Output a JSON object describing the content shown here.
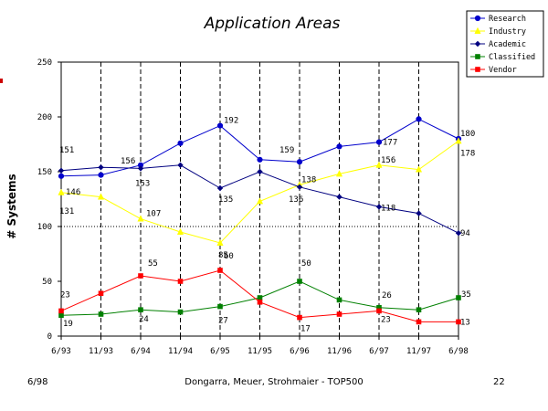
{
  "chart_data": {
    "type": "line",
    "title": "Application Areas",
    "ylabel": "# Systems",
    "xlabel": "",
    "categories": [
      "6/93",
      "11/93",
      "6/94",
      "11/94",
      "6/95",
      "11/95",
      "6/96",
      "11/96",
      "6/97",
      "11/97",
      "6/98"
    ],
    "ylim": [
      0,
      250
    ],
    "yticks": [
      0,
      50,
      100,
      150,
      200,
      250
    ],
    "grid": "vertical dashed lines at each category; dotted horizontal line at 100",
    "legend_position": "top-right",
    "series": [
      {
        "name": "Research",
        "color": "#0000cc",
        "marker": "circle",
        "values": [
          146,
          147,
          156,
          176,
          192,
          161,
          159,
          173,
          177,
          198,
          180
        ]
      },
      {
        "name": "Industry",
        "color": "#ffff00",
        "marker": "triangle",
        "values": [
          131,
          127,
          107,
          95,
          85,
          123,
          138,
          148,
          156,
          152,
          178
        ]
      },
      {
        "name": "Academic",
        "color": "#000080",
        "marker": "diamond",
        "values": [
          151,
          154,
          153,
          156,
          135,
          150,
          136,
          127,
          118,
          112,
          94
        ]
      },
      {
        "name": "Classified",
        "color": "#008000",
        "marker": "square",
        "values": [
          19,
          20,
          24,
          22,
          27,
          35,
          50,
          33,
          26,
          24,
          35
        ]
      },
      {
        "name": "Vendor",
        "color": "#ff0000",
        "marker": "square",
        "values": [
          23,
          39,
          55,
          50,
          60,
          31,
          17,
          20,
          23,
          13,
          13
        ]
      }
    ],
    "annotations": [
      {
        "series": 0,
        "index": 0,
        "text": "146"
      },
      {
        "series": 0,
        "index": 2,
        "text": "156"
      },
      {
        "series": 0,
        "index": 4,
        "text": "192"
      },
      {
        "series": 0,
        "index": 6,
        "text": "159"
      },
      {
        "series": 0,
        "index": 8,
        "text": "177"
      },
      {
        "series": 0,
        "index": 10,
        "text": "180"
      },
      {
        "series": 1,
        "index": 0,
        "text": "131"
      },
      {
        "series": 1,
        "index": 2,
        "text": "107"
      },
      {
        "series": 1,
        "index": 4,
        "text": "85"
      },
      {
        "series": 1,
        "index": 6,
        "text": "138"
      },
      {
        "series": 1,
        "index": 8,
        "text": "156"
      },
      {
        "series": 1,
        "index": 10,
        "text": "178"
      },
      {
        "series": 2,
        "index": 0,
        "text": "151"
      },
      {
        "series": 2,
        "index": 2,
        "text": "153"
      },
      {
        "series": 2,
        "index": 4,
        "text": "135"
      },
      {
        "series": 2,
        "index": 6,
        "text": "136"
      },
      {
        "series": 2,
        "index": 8,
        "text": "118"
      },
      {
        "series": 2,
        "index": 10,
        "text": "94"
      },
      {
        "series": 3,
        "index": 0,
        "text": "19"
      },
      {
        "series": 3,
        "index": 2,
        "text": "24"
      },
      {
        "series": 3,
        "index": 4,
        "text": "27"
      },
      {
        "series": 3,
        "index": 6,
        "text": "50"
      },
      {
        "series": 3,
        "index": 8,
        "text": "26"
      },
      {
        "series": 3,
        "index": 10,
        "text": "35"
      },
      {
        "series": 4,
        "index": 0,
        "text": "23"
      },
      {
        "series": 4,
        "index": 2,
        "text": "55"
      },
      {
        "series": 4,
        "index": 4,
        "text": "60"
      },
      {
        "series": 4,
        "index": 6,
        "text": "17"
      },
      {
        "series": 4,
        "index": 8,
        "text": "23"
      },
      {
        "series": 4,
        "index": 10,
        "text": "13"
      }
    ]
  },
  "footer": {
    "left": "6/98",
    "center": "Dongarra, Meuer, Strohmaier - TOP500",
    "right": "22"
  },
  "colors": {
    "grid": "#000000",
    "edge_marker": "#cc0000"
  }
}
